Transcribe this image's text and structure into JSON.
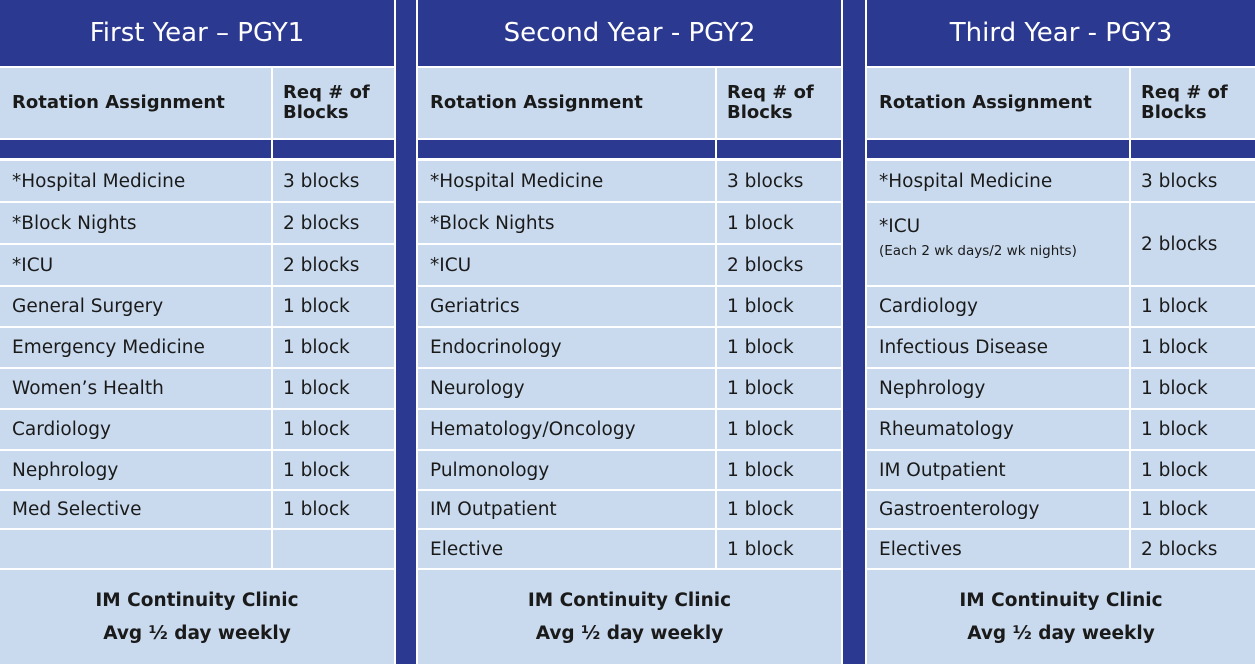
{
  "years": [
    {
      "title": "First Year – PGY1",
      "col_rotation": "Rotation Assignment",
      "col_blocks": "Req # of Blocks",
      "rows": [
        {
          "rotation": "*Hospital Medicine",
          "blocks": "3 blocks"
        },
        {
          "rotation": "*Block Nights",
          "blocks": "2 blocks"
        },
        {
          "rotation": "*ICU",
          "blocks": "2 blocks"
        },
        {
          "rotation": "General Surgery",
          "blocks": "1 block"
        },
        {
          "rotation": "Emergency Medicine",
          "blocks": "1 block"
        },
        {
          "rotation": "Women’s Health",
          "blocks": "1 block"
        },
        {
          "rotation": "Cardiology",
          "blocks": "1 block"
        },
        {
          "rotation": "Nephrology",
          "blocks": "1 block"
        },
        {
          "rotation": "Med Selective",
          "blocks": "1 block"
        },
        {
          "rotation": "",
          "blocks": ""
        }
      ],
      "footer_line1": "IM Continuity Clinic",
      "footer_line2": "Avg ½ day weekly"
    },
    {
      "title": "Second Year - PGY2",
      "col_rotation": "Rotation Assignment",
      "col_blocks": "Req # of Blocks",
      "rows": [
        {
          "rotation": "*Hospital Medicine",
          "blocks": "3 blocks"
        },
        {
          "rotation": "*Block Nights",
          "blocks": "1 block"
        },
        {
          "rotation": "*ICU",
          "blocks": "2 blocks"
        },
        {
          "rotation": "Geriatrics",
          "blocks": "1 block"
        },
        {
          "rotation": "Endocrinology",
          "blocks": "1 block"
        },
        {
          "rotation": "Neurology",
          "blocks": "1 block"
        },
        {
          "rotation": "Hematology/Oncology",
          "blocks": "1 block"
        },
        {
          "rotation": "Pulmonology",
          "blocks": "1 block"
        },
        {
          "rotation": "IM Outpatient",
          "blocks": "1 block"
        },
        {
          "rotation": "Elective",
          "blocks": "1 block"
        }
      ],
      "footer_line1": "IM Continuity Clinic",
      "footer_line2": "Avg ½ day weekly"
    },
    {
      "title": "Third Year - PGY3",
      "col_rotation": "Rotation Assignment",
      "col_blocks": "Req # of Blocks",
      "rows": [
        {
          "rotation": "*Hospital Medicine",
          "blocks": "3 blocks"
        },
        {
          "rotation": "*ICU",
          "note": "(Each 2 wk days/2 wk nights)",
          "blocks": "2 blocks"
        },
        {
          "rotation": "Cardiology",
          "blocks": "1 block"
        },
        {
          "rotation": "Infectious Disease",
          "blocks": "1 block"
        },
        {
          "rotation": "Nephrology",
          "blocks": "1 block"
        },
        {
          "rotation": "Rheumatology",
          "blocks": "1 block"
        },
        {
          "rotation": "IM Outpatient",
          "blocks": "1 block"
        },
        {
          "rotation": "Gastroenterology",
          "blocks": "1 block"
        },
        {
          "rotation": "Electives",
          "blocks": "2 blocks"
        }
      ],
      "footer_line1": "IM Continuity Clinic",
      "footer_line2": "Avg ½ day weekly"
    }
  ],
  "colors": {
    "header_band": "#2b3990",
    "cell_fill": "#c9daee",
    "grid_line": "#ffffff"
  }
}
